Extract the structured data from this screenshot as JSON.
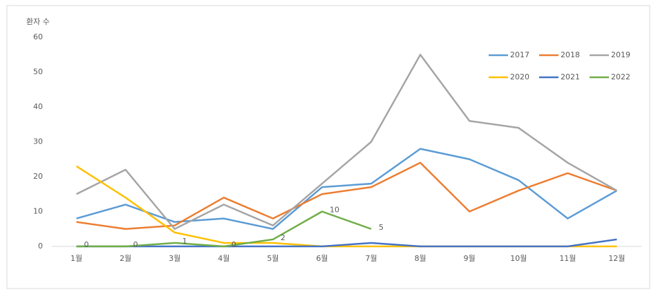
{
  "chart_data": {
    "type": "line",
    "ylabel": "환자 수",
    "categories": [
      "1월",
      "2월",
      "3월",
      "4월",
      "5월",
      "6월",
      "7월",
      "8월",
      "9월",
      "10월",
      "11월",
      "12월"
    ],
    "series": [
      {
        "name": "2017",
        "color": "#5b9bd5",
        "values": [
          8,
          12,
          7,
          8,
          5,
          17,
          18,
          28,
          25,
          19,
          8,
          16
        ]
      },
      {
        "name": "2018",
        "color": "#ed7d31",
        "values": [
          7,
          5,
          6,
          14,
          8,
          15,
          17,
          24,
          10,
          16,
          21,
          16
        ]
      },
      {
        "name": "2019",
        "color": "#a5a5a5",
        "values": [
          15,
          22,
          5,
          12,
          6,
          18,
          30,
          55,
          36,
          34,
          24,
          16
        ]
      },
      {
        "name": "2020",
        "color": "#ffc000",
        "values": [
          23,
          14,
          4,
          1,
          1,
          0,
          0,
          0,
          0,
          0,
          0,
          0
        ]
      },
      {
        "name": "2021",
        "color": "#4472c4",
        "values": [
          0,
          0,
          0,
          0,
          0,
          0,
          1,
          0,
          0,
          0,
          0,
          2
        ]
      },
      {
        "name": "2022",
        "color": "#70ad47",
        "values": [
          0,
          0,
          1,
          0,
          2,
          10,
          5,
          null,
          null,
          null,
          null,
          null
        ],
        "data_labels": true
      }
    ],
    "ylim": [
      0,
      60
    ],
    "yticks": [
      0,
      10,
      20,
      30,
      40,
      50,
      60
    ],
    "grid": false,
    "legend": "upper right"
  }
}
